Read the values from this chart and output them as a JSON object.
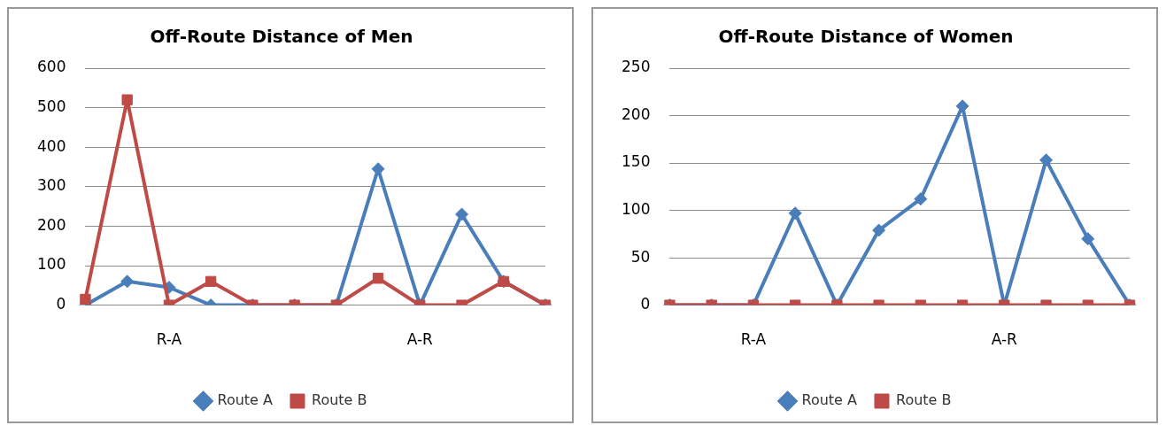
{
  "chart_data": [
    {
      "type": "line",
      "title": "Off-Route Distance of Men",
      "categories": [
        null,
        null,
        "R-A",
        null,
        null,
        null,
        null,
        null,
        "A-R",
        null,
        null,
        null
      ],
      "ylim": [
        0,
        600
      ],
      "yticks": [
        0,
        100,
        200,
        300,
        400,
        500,
        600
      ],
      "grid": "y",
      "legend": "bottom",
      "series": [
        {
          "name": "Route A",
          "color": "#4a7ebb",
          "marker": "diamond",
          "values": [
            0,
            60,
            45,
            0,
            0,
            0,
            0,
            345,
            0,
            230,
            60,
            0
          ]
        },
        {
          "name": "Route B",
          "color": "#be4b48",
          "marker": "square",
          "values": [
            15,
            520,
            0,
            60,
            0,
            0,
            0,
            68,
            0,
            0,
            60,
            0
          ]
        }
      ]
    },
    {
      "type": "line",
      "title": "Off-Route Distance of Women",
      "categories": [
        null,
        null,
        "R-A",
        null,
        null,
        null,
        null,
        null,
        "A-R",
        null,
        null,
        null
      ],
      "ylim": [
        0,
        250
      ],
      "yticks": [
        0,
        50,
        100,
        150,
        200,
        250
      ],
      "grid": "y",
      "legend": "bottom",
      "series": [
        {
          "name": "Route A",
          "color": "#4a7ebb",
          "marker": "diamond",
          "values": [
            0,
            0,
            0,
            97,
            0,
            79,
            112,
            210,
            0,
            153,
            70,
            0
          ]
        },
        {
          "name": "Route B",
          "color": "#be4b48",
          "marker": "square",
          "values": [
            0,
            0,
            0,
            0,
            0,
            0,
            0,
            0,
            0,
            0,
            0,
            0
          ]
        }
      ]
    }
  ]
}
